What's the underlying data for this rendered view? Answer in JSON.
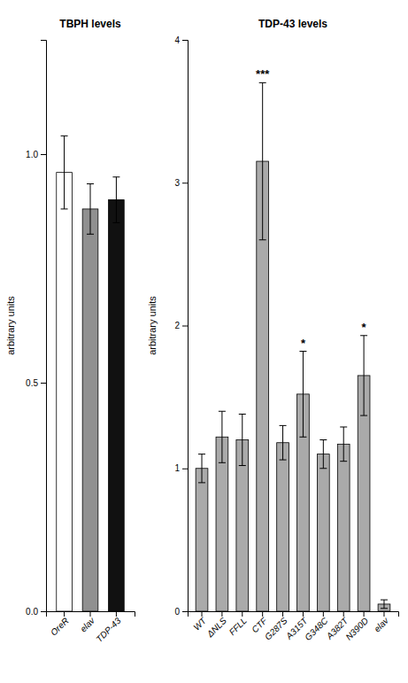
{
  "chart_data": [
    {
      "type": "bar",
      "title": "TBPH levels",
      "ylabel": "arbitrary units",
      "categories": [
        "OreR",
        "elav",
        "TDP-43"
      ],
      "values": [
        0.96,
        0.88,
        0.9
      ],
      "errors": [
        0.08,
        0.055,
        0.05
      ],
      "colors": [
        "#ffffff",
        "#909090",
        "#111111"
      ],
      "ylim": [
        0,
        1.25
      ],
      "yticks": [
        {
          "value": 0,
          "label": "0.0"
        },
        0.5,
        {
          "value": 1,
          "label": "1.0"
        }
      ],
      "grid": false
    },
    {
      "type": "bar",
      "title": "TDP-43 levels",
      "ylabel": "arbitrary units",
      "categories": [
        "WT",
        "ΔNLS",
        "FFLL",
        "CTF",
        "G287S",
        "A315T",
        "G348C",
        "A382T",
        "N390D",
        "elav"
      ],
      "values": [
        1.0,
        1.22,
        1.2,
        3.15,
        1.18,
        1.52,
        1.1,
        1.17,
        1.65,
        0.05
      ],
      "errors": [
        0.1,
        0.18,
        0.18,
        0.55,
        0.12,
        0.3,
        0.1,
        0.12,
        0.28,
        0.03
      ],
      "color": "#aaaaaa",
      "ylim": [
        0,
        4
      ],
      "yticks": [
        0,
        1,
        2,
        3,
        4
      ],
      "grid": false,
      "annotations": [
        {
          "category": "CTF",
          "text": "***"
        },
        {
          "category": "A315T",
          "text": "*"
        },
        {
          "category": "N390D",
          "text": "*"
        }
      ]
    }
  ]
}
